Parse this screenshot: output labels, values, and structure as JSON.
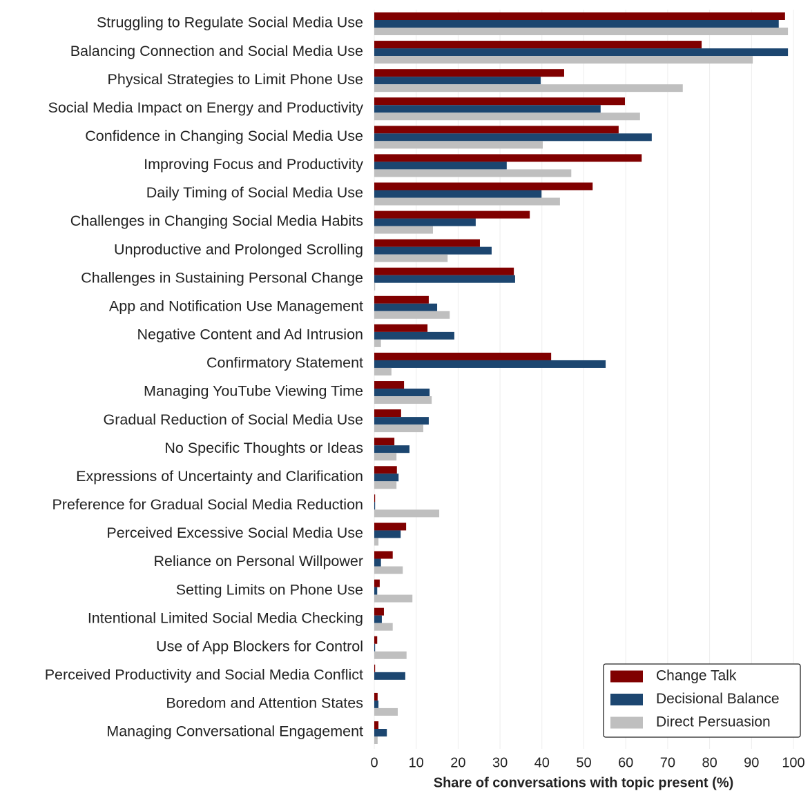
{
  "chart_data": {
    "type": "hbar",
    "x_label": "Share of conversations with topic present (%)",
    "categories": [
      "Struggling to Regulate Social Media Use",
      "Balancing Connection and Social Media Use",
      "Physical Strategies to Limit Phone Use",
      "Social Media Impact on Energy and Productivity",
      "Confidence in Changing Social Media Use",
      "Improving Focus and Productivity",
      "Daily Timing of Social Media Use",
      "Challenges in Changing Social Media Habits",
      "Unproductive and Prolonged Scrolling",
      "Challenges in Sustaining Personal Change",
      "App and Notification Use Management",
      "Negative Content and Ad Intrusion",
      "Confirmatory Statement",
      "Managing YouTube Viewing Time",
      "Gradual Reduction of Social Media Use",
      "No Specific Thoughts or Ideas",
      "Expressions of Uncertainty and Clarification",
      "Preference for Gradual Social Media Reduction",
      "Perceived Excessive Social Media Use",
      "Reliance on Personal Willpower",
      "Setting Limits on Phone Use",
      "Intentional Limited Social Media Checking",
      "Use of App Blockers for Control",
      "Perceived Productivity and Social Media Conflict",
      "Boredom and Attention States",
      "Managing Conversational Engagement"
    ],
    "series": [
      {
        "name": "Change Talk",
        "color": "#800000",
        "values": [
          98.0,
          78.1,
          45.3,
          59.8,
          58.3,
          63.8,
          52.1,
          37.1,
          25.2,
          33.3,
          13.0,
          12.7,
          42.2,
          7.1,
          6.4,
          4.8,
          5.4,
          0.2,
          7.6,
          4.4,
          1.3,
          2.3,
          0.7,
          0.2,
          0.8,
          1.0
        ]
      },
      {
        "name": "Decisional Balance",
        "color": "#1c4670",
        "values": [
          96.5,
          98.7,
          39.7,
          54.0,
          66.2,
          31.6,
          39.9,
          24.2,
          28.0,
          33.6,
          15.0,
          19.1,
          55.2,
          13.2,
          13.0,
          8.4,
          5.8,
          0.2,
          6.3,
          1.6,
          0.7,
          1.8,
          0.2,
          7.4,
          1.0,
          3.0
        ]
      },
      {
        "name": "Direct Persuasion",
        "color": "#bfbfbf",
        "values": [
          98.7,
          90.3,
          73.6,
          63.4,
          40.2,
          47.0,
          44.3,
          14.0,
          17.5,
          0.2,
          18.0,
          1.6,
          4.1,
          13.7,
          11.7,
          5.3,
          5.3,
          15.5,
          1.0,
          6.8,
          9.1,
          4.4,
          7.7,
          0,
          5.6,
          0.8
        ]
      }
    ],
    "xlim": [
      0,
      100
    ],
    "xticks": [
      0,
      10,
      20,
      30,
      40,
      50,
      60,
      70,
      80,
      90,
      100
    ],
    "grid": true,
    "legend": "lower right"
  }
}
